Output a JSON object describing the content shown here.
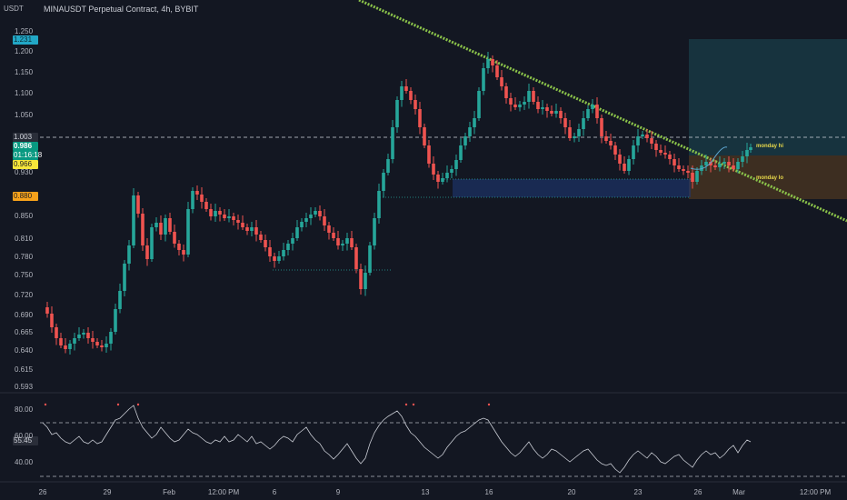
{
  "header": {
    "currency": "USDT",
    "title": "MINAUSDT Perpetual Contract, 4h, BYBIT"
  },
  "price_axis": {
    "ticks": [
      "1.250",
      "1.200",
      "1.150",
      "1.100",
      "1.050",
      "1.003",
      "0.986",
      "01:16:18",
      "0.966",
      "0.930",
      "0.880",
      "0.850",
      "0.810",
      "0.780",
      "0.750",
      "0.720",
      "0.690",
      "0.665",
      "0.640",
      "0.615",
      "0.593"
    ],
    "labels": {
      "top_box": "1.231",
      "dashed_level": "1.003",
      "last_price": "0.986",
      "countdown": "01:16:18",
      "monday_hi": "0.966",
      "monday_lo": "0.880"
    },
    "plain_ticks": [
      "1.250",
      "1.200",
      "1.150",
      "1.100",
      "1.050",
      "0.930",
      "0.850",
      "0.810",
      "0.780",
      "0.750",
      "0.720",
      "0.690",
      "0.665",
      "0.640",
      "0.615",
      "0.593"
    ]
  },
  "rsi_axis": {
    "ticks": [
      "80.00",
      "60.00",
      "40.00"
    ],
    "current": "55.45"
  },
  "time_axis": {
    "ticks": [
      "26",
      "29",
      "Feb",
      "12:00 PM",
      "6",
      "9",
      "13",
      "16",
      "20",
      "23",
      "26",
      "Mar",
      "12:00 PM"
    ]
  },
  "annotations": {
    "monday_hi": "monday hi",
    "monday_lo": "monday lo"
  },
  "colors": {
    "background": "#131722",
    "bull": "#26a69a",
    "bear": "#ef5350",
    "trendline": "#8bc34a",
    "last_price_tag": "#089981",
    "monday_hi_tag": "#f5e63a",
    "monday_lo_tag": "#f7a21b",
    "top_box_tag": "#22a7c6"
  }
}
